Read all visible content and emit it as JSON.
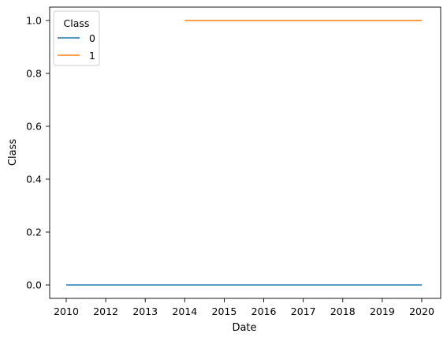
{
  "chart_data": {
    "type": "line",
    "xlabel": "Date",
    "ylabel": "Class",
    "x_ticks": [
      "2010",
      "2012",
      "2013",
      "2014",
      "2015",
      "2016",
      "2017",
      "2018",
      "2019",
      "2020"
    ],
    "y_ticks": [
      "0.0",
      "0.2",
      "0.4",
      "0.6",
      "0.8",
      "1.0"
    ],
    "ylim": [
      0.0,
      1.0
    ],
    "legend": {
      "title": "Class",
      "location": "upper-left"
    },
    "grid": false,
    "series": [
      {
        "name": "0",
        "color": "#1f77b4",
        "points": [
          {
            "x": "2010",
            "y": 0
          },
          {
            "x": "2020",
            "y": 0
          }
        ]
      },
      {
        "name": "1",
        "color": "#ff7f0e",
        "points": [
          {
            "x": "2014",
            "y": 1
          },
          {
            "x": "2020",
            "y": 1
          }
        ]
      }
    ]
  }
}
